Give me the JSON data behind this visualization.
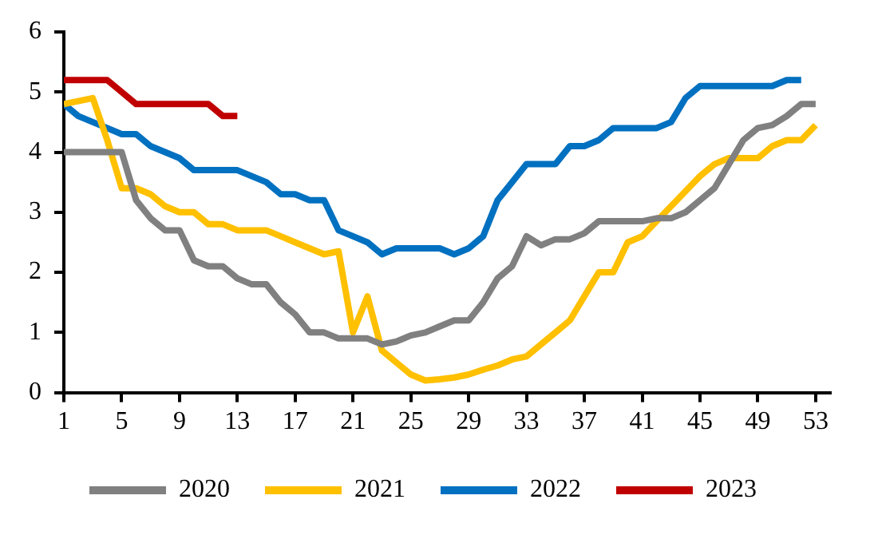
{
  "chart_data": {
    "type": "line",
    "x": [
      1,
      2,
      3,
      4,
      5,
      6,
      7,
      8,
      9,
      10,
      11,
      12,
      13,
      14,
      15,
      16,
      17,
      18,
      19,
      20,
      21,
      22,
      23,
      24,
      25,
      26,
      27,
      28,
      29,
      30,
      31,
      32,
      33,
      34,
      35,
      36,
      37,
      38,
      39,
      40,
      41,
      42,
      43,
      44,
      45,
      46,
      47,
      48,
      49,
      50,
      51,
      52,
      53
    ],
    "series": [
      {
        "name": "2020",
        "color": "#808080",
        "values": [
          4.0,
          4.0,
          4.0,
          4.0,
          4.0,
          3.2,
          2.9,
          2.7,
          2.7,
          2.2,
          2.1,
          2.1,
          1.9,
          1.8,
          1.8,
          1.5,
          1.3,
          1.0,
          1.0,
          0.9,
          0.9,
          0.9,
          0.8,
          0.85,
          0.95,
          1.0,
          1.1,
          1.2,
          1.2,
          1.5,
          1.9,
          2.1,
          2.6,
          2.45,
          2.55,
          2.55,
          2.65,
          2.85,
          2.85,
          2.85,
          2.85,
          2.9,
          2.9,
          3.0,
          3.2,
          3.4,
          3.8,
          4.2,
          4.4,
          4.45,
          4.6,
          4.8,
          4.8
        ]
      },
      {
        "name": "2021",
        "color": "#ffc000",
        "values": [
          4.8,
          4.85,
          4.9,
          4.2,
          3.4,
          3.4,
          3.3,
          3.1,
          3.0,
          3.0,
          2.8,
          2.8,
          2.7,
          2.7,
          2.7,
          2.6,
          2.5,
          2.4,
          2.3,
          2.35,
          1.0,
          1.6,
          0.7,
          0.5,
          0.3,
          0.2,
          0.22,
          0.25,
          0.3,
          0.38,
          0.45,
          0.55,
          0.6,
          0.8,
          1.0,
          1.2,
          1.6,
          2.0,
          2.0,
          2.5,
          2.6,
          2.85,
          3.1,
          3.35,
          3.6,
          3.8,
          3.9,
          3.9,
          3.9,
          4.1,
          4.2,
          4.2,
          4.45
        ]
      },
      {
        "name": "2022",
        "color": "#0070c0",
        "values": [
          4.8,
          4.6,
          4.5,
          4.4,
          4.3,
          4.3,
          4.1,
          4.0,
          3.9,
          3.7,
          3.7,
          3.7,
          3.7,
          3.6,
          3.5,
          3.3,
          3.3,
          3.2,
          3.2,
          2.7,
          2.6,
          2.5,
          2.3,
          2.4,
          2.4,
          2.4,
          2.4,
          2.3,
          2.4,
          2.6,
          3.2,
          3.5,
          3.8,
          3.8,
          3.8,
          4.1,
          4.1,
          4.2,
          4.4,
          4.4,
          4.4,
          4.4,
          4.5,
          4.9,
          5.1,
          5.1,
          5.1,
          5.1,
          5.1,
          5.1,
          5.2,
          5.2,
          null
        ]
      },
      {
        "name": "2023",
        "color": "#c00000",
        "values": [
          5.2,
          5.2,
          5.2,
          5.2,
          5.0,
          4.8,
          4.8,
          4.8,
          4.8,
          4.8,
          4.8,
          4.6,
          4.6,
          null,
          null,
          null,
          null,
          null,
          null,
          null,
          null,
          null,
          null,
          null,
          null,
          null,
          null,
          null,
          null,
          null,
          null,
          null,
          null,
          null,
          null,
          null,
          null,
          null,
          null,
          null,
          null,
          null,
          null,
          null,
          null,
          null,
          null,
          null,
          null,
          null,
          null,
          null,
          null
        ]
      }
    ],
    "xlim": [
      1,
      54
    ],
    "xticks": [
      1,
      5,
      9,
      13,
      17,
      21,
      25,
      29,
      33,
      37,
      41,
      45,
      49,
      53
    ],
    "ylim": [
      0,
      6
    ],
    "yticks": [
      0,
      1,
      2,
      3,
      4,
      5,
      6
    ],
    "grid": false,
    "legend": "bottom",
    "marker": "none",
    "line_style": "solid"
  }
}
